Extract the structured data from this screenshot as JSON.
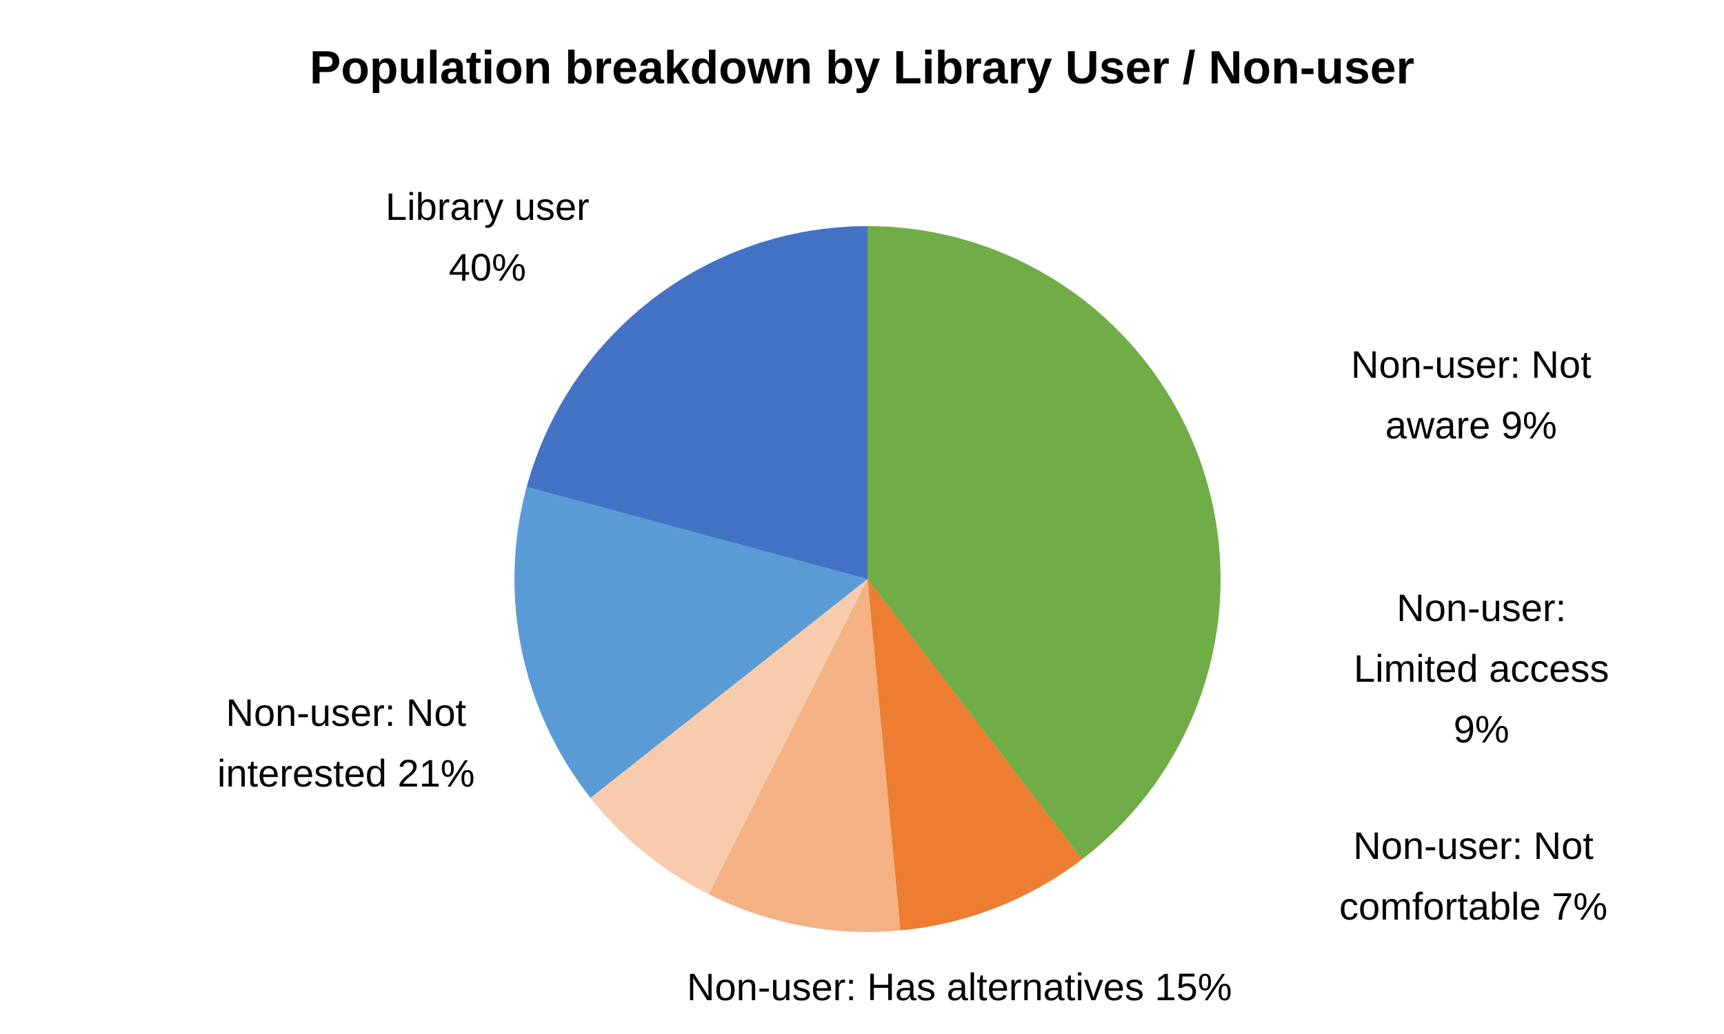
{
  "chart_data": {
    "type": "pie",
    "title": "Population breakdown by Library User / Non-user",
    "start_angle_deg": 270,
    "direction": "clockwise",
    "slices": [
      {
        "name": "Library user",
        "value": 40,
        "value_label": "40%",
        "color": "#70AD47",
        "label_lines": [
          "Library user",
          "40%"
        ]
      },
      {
        "name": "Non-user: Not aware",
        "value": 9,
        "value_label": "9%",
        "color": "#ED7D31",
        "label_lines": [
          "Non-user: Not",
          "aware 9%"
        ]
      },
      {
        "name": "Non-user: Limited access",
        "value": 9,
        "value_label": "9%",
        "color": "#F4B183",
        "label_lines": [
          "Non-user:",
          "Limited access",
          "9%"
        ]
      },
      {
        "name": "Non-user: Not comfortable",
        "value": 7,
        "value_label": "7%",
        "color": "#F8CBAD",
        "label_lines": [
          "Non-user: Not",
          "comfortable 7%"
        ]
      },
      {
        "name": "Non-user: Has alternatives",
        "value": 15,
        "value_label": "15%",
        "color": "#5B9BD5",
        "label_lines": [
          "Non-user: Has alternatives 15%"
        ]
      },
      {
        "name": "Non-user: Not interested",
        "value": 21,
        "value_label": "21%",
        "color": "#4472C4",
        "label_lines": [
          "Non-user: Not",
          "interested 21%"
        ]
      }
    ],
    "legend": "none",
    "data_labels": "outside"
  }
}
